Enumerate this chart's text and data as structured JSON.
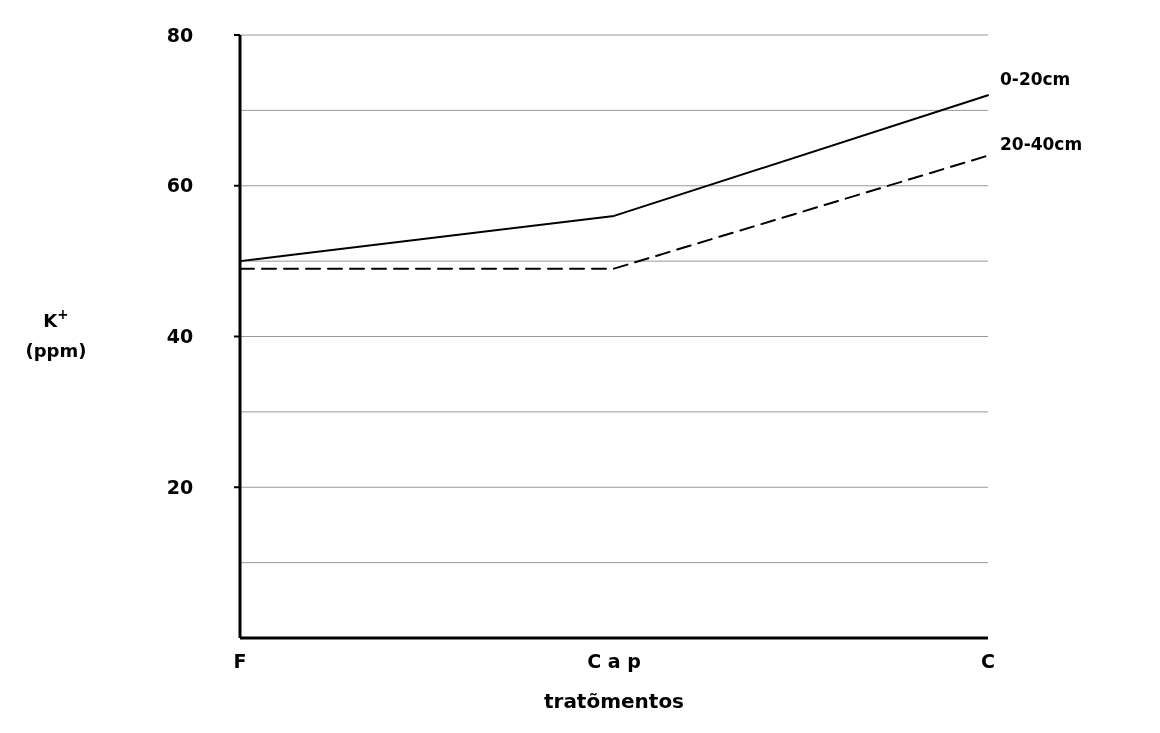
{
  "chart_data": {
    "type": "line",
    "xlabel": "tratõmentos",
    "ylabel": "K$^{+}$ (ppm)",
    "categories": [
      "F",
      "C a p",
      "C"
    ],
    "series": [
      {
        "name": "0-20cm",
        "color": "#000000",
        "line_style": "solid",
        "values": [
          50,
          56,
          72
        ]
      },
      {
        "name": "20-40cm",
        "color": "#000000",
        "line_style": "dashed",
        "values": [
          49,
          49,
          64
        ]
      }
    ],
    "ylim": [
      0,
      80
    ],
    "yticks": [
      {
        "value": 10,
        "label": null
      },
      20,
      {
        "value": 30,
        "label": null
      },
      40,
      {
        "value": 50,
        "label": null
      },
      60,
      {
        "value": 70,
        "label": null
      },
      80
    ],
    "grid": "y",
    "marker": "none"
  }
}
